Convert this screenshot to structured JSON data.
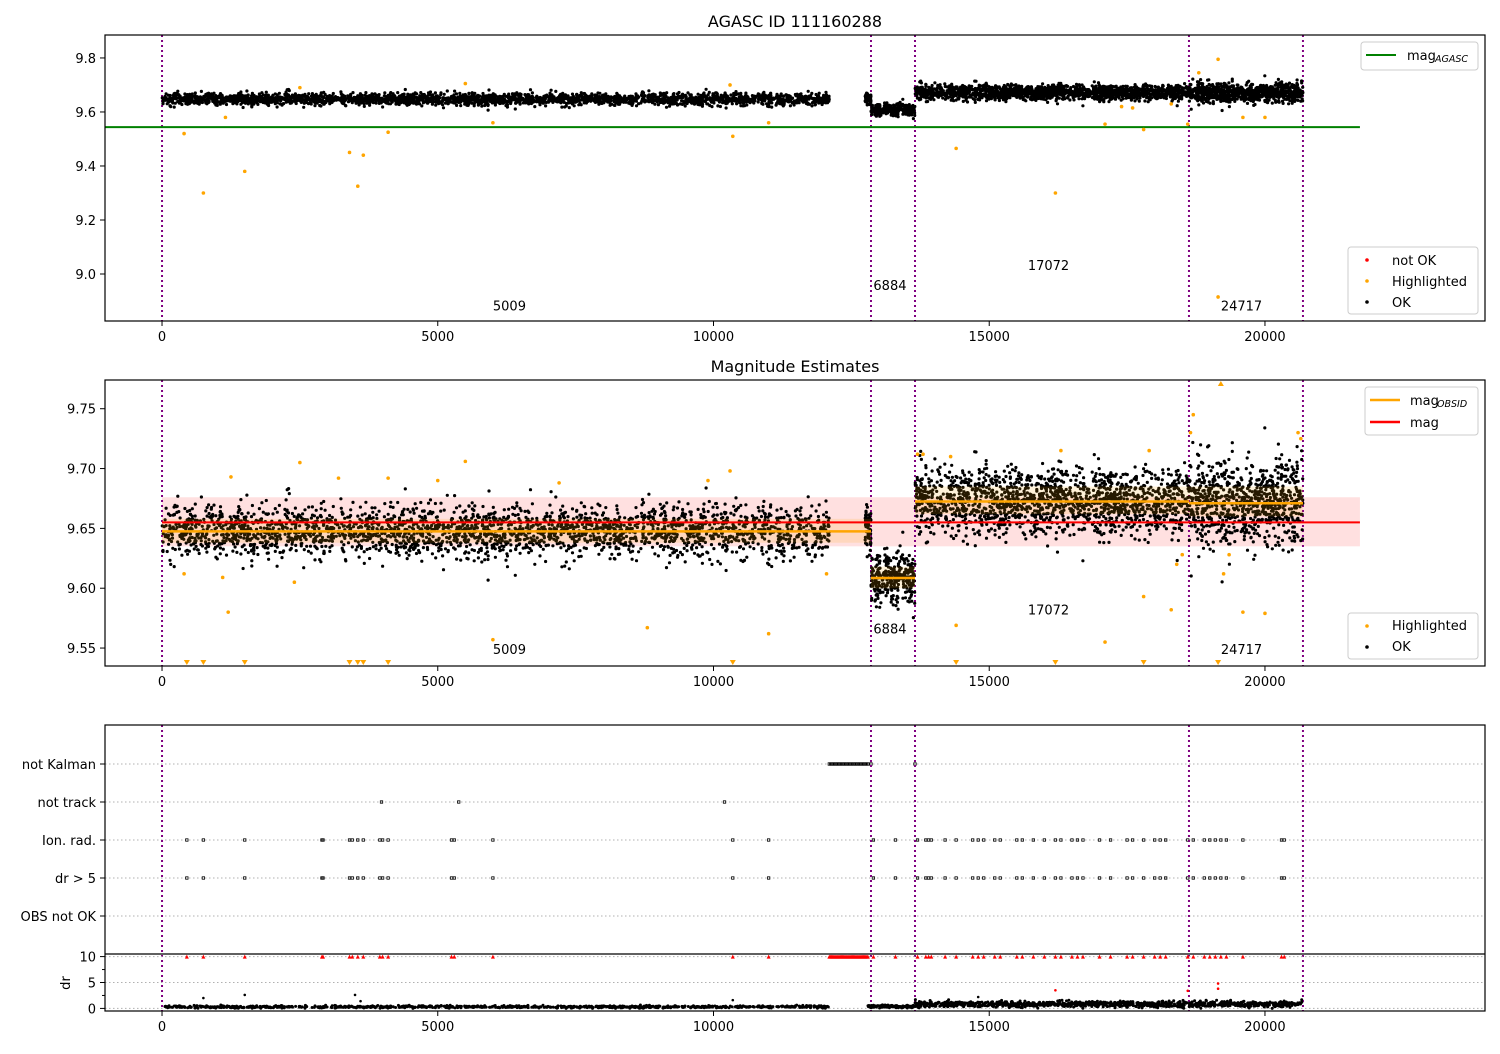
{
  "chart_data": [
    {
      "type": "scatter",
      "title": "AGASC ID 111160288",
      "xlim": [
        -1034,
        23990
      ],
      "ylim": [
        8.826,
        9.885
      ],
      "xticks": [
        0,
        5000,
        10000,
        15000,
        20000
      ],
      "yticks": [
        9.0,
        9.2,
        9.4,
        9.6,
        9.8
      ],
      "ytick_labels": [
        "9.0",
        "9.2",
        "9.4",
        "9.6",
        "9.8"
      ],
      "mag_agasc": {
        "value": 9.544,
        "x_range": [
          -1034,
          21722
        ],
        "color": "#008000"
      },
      "obsid_boundaries": [
        0,
        12856,
        13654,
        18622,
        20689
      ],
      "obsid_labels": [
        {
          "text": "5009",
          "x": 6000,
          "y": 8.865
        },
        {
          "text": "6884",
          "x": 12900,
          "y": 8.94
        },
        {
          "text": "17072",
          "x": 15700,
          "y": 9.015
        },
        {
          "text": "24717",
          "x": 19200,
          "y": 8.865
        }
      ],
      "legend_line": {
        "label": "mag",
        "sub": "AGASC",
        "position": "top-right"
      },
      "legend_points": {
        "items": [
          "not OK",
          "Highlighted",
          "OK"
        ],
        "colors": [
          "#ff0000",
          "#ffa500",
          "#000000"
        ],
        "position": "bottom-right"
      },
      "highlighted": [
        [
          400,
          9.52
        ],
        [
          750,
          9.3
        ],
        [
          1500,
          9.38
        ],
        [
          3400,
          9.45
        ],
        [
          3550,
          9.325
        ],
        [
          3650,
          9.44
        ],
        [
          4100,
          9.525
        ],
        [
          6000,
          9.56
        ],
        [
          10350,
          9.51
        ],
        [
          1150,
          9.58
        ],
        [
          11000,
          9.56
        ],
        [
          14400,
          9.465
        ],
        [
          16200,
          9.3
        ],
        [
          17100,
          9.555
        ],
        [
          17800,
          9.535
        ],
        [
          19150,
          9.795
        ],
        [
          19150,
          8.915
        ],
        [
          19600,
          9.58
        ],
        [
          20000,
          9.58
        ],
        [
          18600,
          9.555
        ],
        [
          17400,
          9.62
        ],
        [
          17600,
          9.615
        ],
        [
          18300,
          9.63
        ],
        [
          2500,
          9.69
        ],
        [
          5500,
          9.705
        ],
        [
          10300,
          9.7
        ],
        [
          18800,
          9.745
        ]
      ]
    },
    {
      "type": "scatter",
      "title": "Magnitude Estimates",
      "xlim": [
        -1034,
        23990
      ],
      "ylim": [
        9.535,
        9.774
      ],
      "xticks": [
        0,
        5000,
        10000,
        15000,
        20000
      ],
      "yticks": [
        9.55,
        9.6,
        9.65,
        9.7,
        9.75
      ],
      "ytick_labels": [
        "9.55",
        "9.60",
        "9.65",
        "9.70",
        "9.75"
      ],
      "mag": {
        "value": 9.655,
        "band": [
          9.635,
          9.676
        ],
        "x_range": [
          0,
          21722
        ],
        "color": "#ff0000"
      },
      "mag_obsid": [
        {
          "x": [
            0,
            12100
          ],
          "value": 9.6475,
          "band": [
            9.638,
            9.658
          ]
        },
        {
          "x": [
            12100,
            12856
          ],
          "value": 9.6475,
          "band": [
            9.638,
            9.658
          ]
        },
        {
          "x": [
            12856,
            13654
          ],
          "value": 9.6085,
          "band": [
            9.6,
            9.618
          ]
        },
        {
          "x": [
            13654,
            18622
          ],
          "value": 9.6725,
          "band": [
            9.662,
            9.685
          ]
        },
        {
          "x": [
            18622,
            20689
          ],
          "value": 9.671,
          "band": [
            9.66,
            9.685
          ]
        }
      ],
      "segments": [
        {
          "x": [
            0,
            12100
          ],
          "mean": 9.6475,
          "sd": 0.011,
          "n": 2600
        },
        {
          "x": [
            12750,
            12856
          ],
          "mean": 9.65,
          "sd": 0.012,
          "n": 60
        },
        {
          "x": [
            12856,
            13654
          ],
          "mean": 9.6085,
          "sd": 0.011,
          "n": 300
        },
        {
          "x": [
            13654,
            18622
          ],
          "mean": 9.6725,
          "sd": 0.015,
          "n": 1600
        },
        {
          "x": [
            18622,
            20689
          ],
          "mean": 9.671,
          "sd": 0.018,
          "n": 800
        }
      ],
      "obsid_boundaries": [
        0,
        12856,
        13654,
        18622,
        20689
      ],
      "obsid_labels": [
        {
          "text": "5009",
          "x": 6000,
          "y": 9.545
        },
        {
          "text": "6884",
          "x": 12900,
          "y": 9.562
        },
        {
          "text": "17072",
          "x": 15700,
          "y": 9.578
        },
        {
          "text": "24717",
          "x": 19200,
          "y": 9.545
        }
      ],
      "legend_line": {
        "items": [
          {
            "label": "mag",
            "sub": "OBSID",
            "color": "#ffa500"
          },
          {
            "label": "mag",
            "sub": "",
            "color": "#ff0000"
          }
        ],
        "position": "top-right"
      },
      "legend_points": {
        "items": [
          "Highlighted",
          "OK"
        ],
        "colors": [
          "#ffa500",
          "#000000"
        ],
        "position": "bottom-right"
      },
      "highlighted": [
        [
          400,
          9.612
        ],
        [
          1100,
          9.609
        ],
        [
          1200,
          9.58
        ],
        [
          2400,
          9.605
        ],
        [
          5500,
          9.706
        ],
        [
          6000,
          9.557
        ],
        [
          8800,
          9.567
        ],
        [
          11000,
          9.562
        ],
        [
          10300,
          9.698
        ],
        [
          14400,
          9.569
        ],
        [
          17100,
          9.555
        ],
        [
          17800,
          9.593
        ],
        [
          18300,
          9.582
        ],
        [
          19600,
          9.58
        ],
        [
          20000,
          9.579
        ],
        [
          18700,
          9.745
        ],
        [
          18650,
          9.73
        ],
        [
          20600,
          9.73
        ],
        [
          20650,
          9.725
        ],
        [
          1250,
          9.693
        ],
        [
          2500,
          9.705
        ],
        [
          3200,
          9.692
        ],
        [
          4100,
          9.692
        ],
        [
          5000,
          9.69
        ],
        [
          7200,
          9.688
        ],
        [
          9900,
          9.69
        ],
        [
          12050,
          9.612
        ],
        [
          13700,
          9.712
        ],
        [
          13800,
          9.712
        ],
        [
          14300,
          9.71
        ],
        [
          16300,
          9.715
        ],
        [
          17900,
          9.715
        ],
        [
          18500,
          9.628
        ],
        [
          18400,
          9.62
        ],
        [
          19250,
          9.612
        ],
        [
          19350,
          9.628
        ]
      ],
      "below_range_markers": [
        450,
        750,
        1500,
        3400,
        3550,
        3650,
        4100,
        10350,
        14400,
        16200,
        17800,
        19150
      ],
      "above_range_markers": [
        19200
      ]
    },
    {
      "type": "scatter",
      "title": "",
      "xlim": [
        -1034,
        23990
      ],
      "xticks": [
        0,
        5000,
        10000,
        15000,
        20000
      ],
      "flag_rows": [
        "not Kalman",
        "not track",
        "Ion. rad.",
        "dr > 5",
        "OBS not OK"
      ],
      "flags": {
        "not Kalman": {
          "ranges": [
            [
              12100,
              12800
            ]
          ],
          "points": [
            12856,
            13654
          ]
        },
        "not track": {
          "points": [
            3980,
            5380,
            10200
          ]
        },
        "Ion. rad.": {
          "points": [
            450,
            750,
            1500,
            2900,
            2920,
            3400,
            3450,
            3550,
            3650,
            3950,
            4000,
            4100,
            5250,
            5300,
            6000,
            10350,
            11000,
            12900,
            13300,
            13700,
            13850,
            13900,
            13950,
            14200,
            14400,
            14700,
            14800,
            14900,
            15100,
            15200,
            15500,
            15600,
            15800,
            16000,
            16200,
            16300,
            16500,
            16600,
            16700,
            17000,
            17200,
            17500,
            17600,
            17800,
            18000,
            18100,
            18200,
            18600,
            18700,
            18900,
            19000,
            19100,
            19200,
            19300,
            19600,
            20300,
            20350
          ]
        },
        "dr > 5": {
          "points": [
            450,
            750,
            1500,
            2900,
            2920,
            3400,
            3450,
            3550,
            3650,
            3950,
            4000,
            4100,
            5250,
            5300,
            6000,
            10350,
            11000,
            12900,
            13300,
            13700,
            13850,
            13900,
            13950,
            14200,
            14400,
            14700,
            14800,
            14900,
            15100,
            15200,
            15500,
            15600,
            15800,
            16000,
            16200,
            16300,
            16500,
            16600,
            16700,
            17000,
            17200,
            17500,
            17600,
            17800,
            18000,
            18100,
            18200,
            18600,
            18700,
            18900,
            19000,
            19100,
            19200,
            19300,
            19600,
            20300,
            20350
          ]
        },
        "OBS not OK": {
          "points": []
        }
      },
      "dr": {
        "ylabel": "dr",
        "ylim": [
          -0.5,
          10.5
        ],
        "yticks": [
          0,
          5,
          10
        ],
        "ytick_labels": [
          "0",
          "5",
          "10"
        ],
        "segments": [
          {
            "x": [
              0,
              12100
            ],
            "mean": 0.3,
            "sd": 0.12,
            "n": 900
          },
          {
            "x": [
              12800,
              13654
            ],
            "mean": 0.4,
            "sd": 0.15,
            "n": 120
          },
          {
            "x": [
              13654,
              20689
            ],
            "mean": 0.8,
            "sd": 0.3,
            "n": 1000
          }
        ],
        "outliers": [
          [
            750,
            2.0
          ],
          [
            1500,
            2.6
          ],
          [
            3500,
            2.6
          ],
          [
            3600,
            1.4
          ],
          [
            10350,
            1.6
          ],
          [
            14800,
            2.2
          ],
          [
            16200,
            3.5
          ],
          [
            18600,
            3.4
          ],
          [
            19150,
            4.8
          ],
          [
            19150,
            3.8
          ]
        ],
        "clipped_at_10": "red triangles at flagged times (dr > 10)"
      }
    }
  ]
}
